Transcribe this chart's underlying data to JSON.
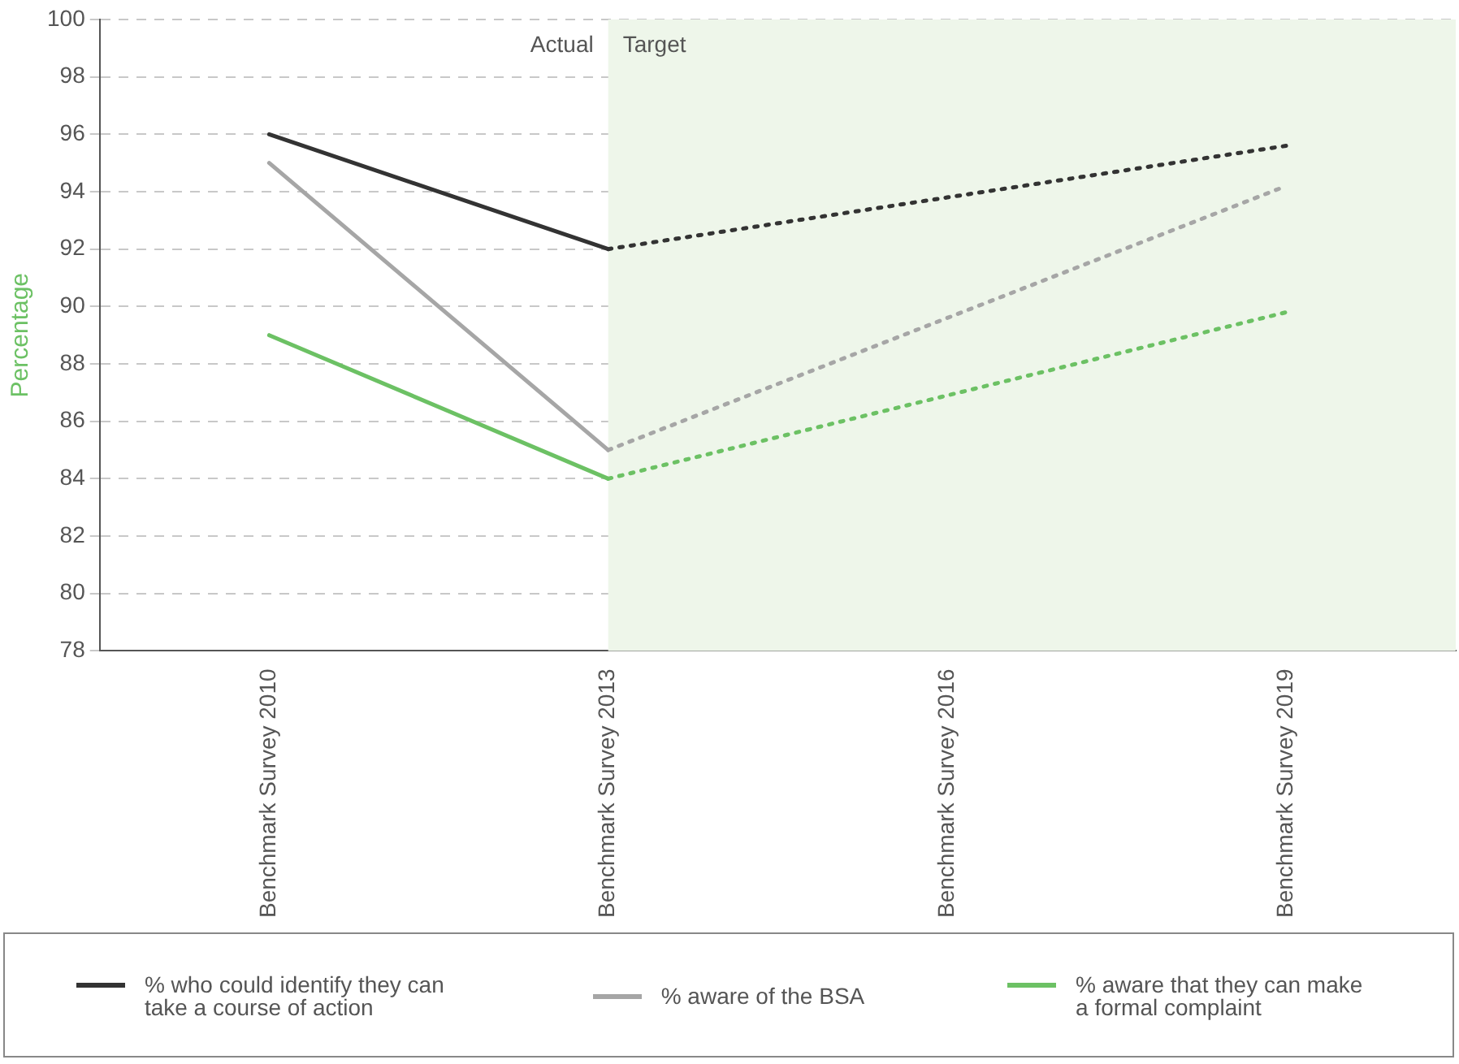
{
  "chart_data": {
    "type": "line",
    "ylabel": "Percentage",
    "categories": [
      "Benchmark Survey 2010",
      "Benchmark Survey 2013",
      "Benchmark Survey 2016",
      "Benchmark Survey 2019"
    ],
    "ylim": [
      78,
      100
    ],
    "yticks": [
      78,
      80,
      82,
      84,
      86,
      88,
      90,
      92,
      94,
      96,
      98,
      100
    ],
    "grid": "y",
    "legend": "bottom",
    "marker": "none",
    "series": [
      {
        "name": "% who could identify they can take a course of action",
        "color": "#333333",
        "values": [
          96,
          92,
          null,
          null
        ],
        "line_style": "solid"
      },
      {
        "name": "% aware of the BSA",
        "color": "#a6a6a6",
        "values": [
          95,
          85,
          null,
          null
        ],
        "line_style": "solid"
      },
      {
        "name": "% aware that they can make a formal complaint",
        "color": "#6cc164",
        "values": [
          89,
          84,
          null,
          null
        ],
        "line_style": "solid"
      },
      {
        "color": "#333333",
        "values": [
          null,
          92,
          93.8,
          95.6
        ],
        "line_style": "dotted"
      },
      {
        "color": "#a6a6a6",
        "values": [
          null,
          85,
          89.6,
          94.2
        ],
        "line_style": "dotted"
      },
      {
        "color": "#6cc164",
        "values": [
          null,
          84,
          86.9,
          89.8
        ],
        "line_style": "dotted"
      }
    ],
    "bands": [
      {
        "axis": "x",
        "from": "Benchmark Survey 2013",
        "to": "Benchmark Survey 2019",
        "label": "Target",
        "color": "#eef6ea"
      }
    ],
    "annotations": [
      "Actual"
    ]
  }
}
